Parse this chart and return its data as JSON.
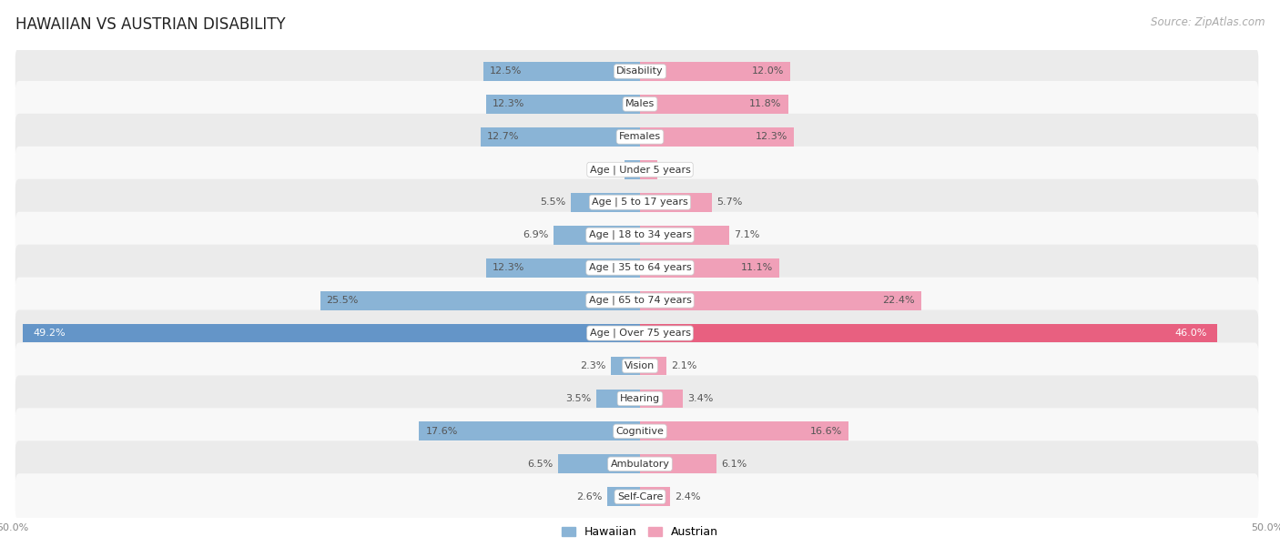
{
  "title": "HAWAIIAN VS AUSTRIAN DISABILITY",
  "source": "Source: ZipAtlas.com",
  "categories": [
    "Disability",
    "Males",
    "Females",
    "Age | Under 5 years",
    "Age | 5 to 17 years",
    "Age | 18 to 34 years",
    "Age | 35 to 64 years",
    "Age | 65 to 74 years",
    "Age | Over 75 years",
    "Vision",
    "Hearing",
    "Cognitive",
    "Ambulatory",
    "Self-Care"
  ],
  "hawaiian": [
    12.5,
    12.3,
    12.7,
    1.2,
    5.5,
    6.9,
    12.3,
    25.5,
    49.2,
    2.3,
    3.5,
    17.6,
    6.5,
    2.6
  ],
  "austrian": [
    12.0,
    11.8,
    12.3,
    1.4,
    5.7,
    7.1,
    11.1,
    22.4,
    46.0,
    2.1,
    3.4,
    16.6,
    6.1,
    2.4
  ],
  "max_val": 50.0,
  "hawaiian_color": "#8ab4d6",
  "austrian_color": "#f0a0b8",
  "hawaiian_highlight": "#6495c8",
  "austrian_highlight": "#e86080",
  "bg_row_color": "#ebebeb",
  "bg_row_alt": "#f8f8f8",
  "label_color_normal": "#555555",
  "label_color_highlight": "#ffffff",
  "bar_height": 0.58,
  "title_fontsize": 12,
  "label_fontsize": 8,
  "cat_fontsize": 8,
  "source_fontsize": 8.5,
  "axis_label_fontsize": 8
}
